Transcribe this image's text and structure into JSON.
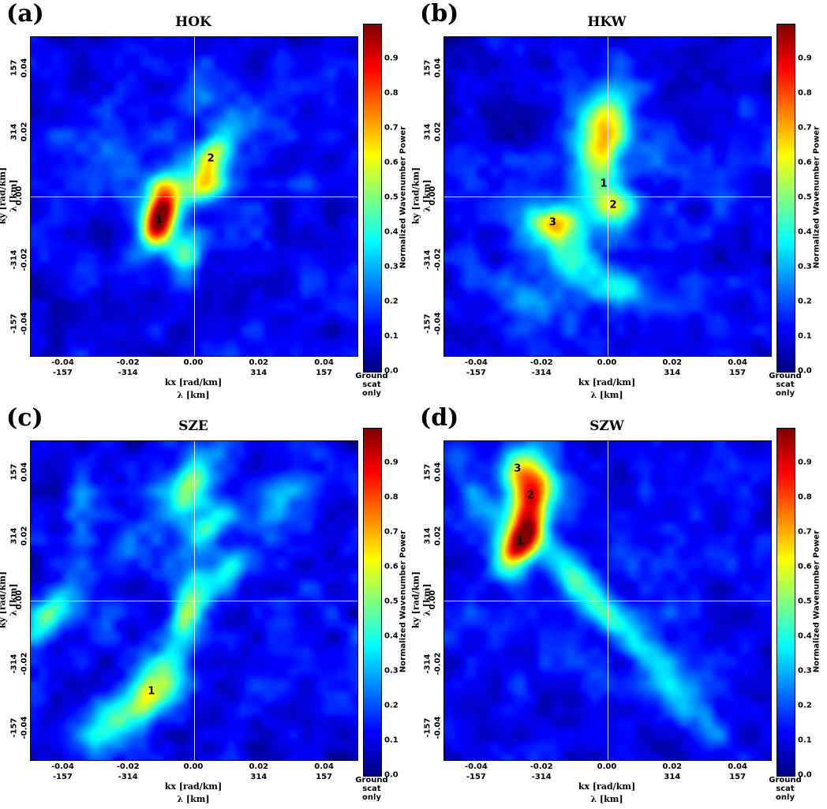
{
  "figure": {
    "background": "#ffffff",
    "axes": {
      "x": {
        "label_k": "kx [rad/km]",
        "label_lambda": "λ [km]",
        "range": [
          -0.05,
          0.05
        ],
        "ticks": [
          {
            "pos": -0.04,
            "k": "-0.04",
            "lam": "-157"
          },
          {
            "pos": -0.02,
            "k": "-0.02",
            "lam": "-314"
          },
          {
            "pos": 0.0,
            "k": "0.00",
            "lam": ""
          },
          {
            "pos": 0.02,
            "k": "0.02",
            "lam": "314"
          },
          {
            "pos": 0.04,
            "k": "0.04",
            "lam": "157"
          }
        ]
      },
      "y": {
        "label_k": "ky [rad/km]",
        "label_lambda": "λ [km]",
        "range": [
          -0.05,
          0.05
        ],
        "ticks": [
          {
            "pos": 0.04,
            "k": "0.04",
            "lam": "157"
          },
          {
            "pos": 0.02,
            "k": "0.02",
            "lam": "314"
          },
          {
            "pos": 0.0,
            "k": "0.00",
            "lam": ""
          },
          {
            "pos": -0.02,
            "k": "-0.02",
            "lam": "-314"
          },
          {
            "pos": -0.04,
            "k": "-0.04",
            "lam": "-157"
          }
        ]
      },
      "colorbar": {
        "label": "Normalized Wavenumber Power",
        "range": [
          0,
          1
        ],
        "ticks": [
          "0.0",
          "0.1",
          "0.2",
          "0.3",
          "0.4",
          "0.5",
          "0.6",
          "0.7",
          "0.8",
          "0.9"
        ],
        "footer": "Ground scat only",
        "colormap": "jet"
      }
    }
  },
  "chart_data": [
    {
      "type": "heatmap",
      "panel_label": "(a)",
      "title": "HOK",
      "peaks": [
        {
          "label": "1",
          "kx": -0.0107,
          "ky": -0.0074,
          "power": 0.97
        },
        {
          "label": "2",
          "kx": 0.0051,
          "ky": 0.0119,
          "power": 0.6
        }
      ],
      "field_blobs": [
        [
          -0.0107,
          -0.0074,
          0.92,
          0.0062,
          0.0034,
          75
        ],
        [
          -0.0095,
          0.0022,
          0.34,
          0.005,
          0.0038,
          75
        ],
        [
          0.0051,
          0.0119,
          0.46,
          0.0062,
          0.0036,
          70
        ],
        [
          0.0028,
          0.0028,
          0.3,
          0.005,
          0.0036,
          20
        ],
        [
          -0.0022,
          -0.018,
          0.27,
          0.0048,
          0.0038,
          80
        ],
        [
          0.0125,
          0.021,
          0.17,
          0.0045,
          0.0036,
          40
        ],
        [
          0.0005,
          0.033,
          0.14,
          0.005,
          0.004,
          0
        ],
        [
          -0.026,
          0.013,
          0.1,
          0.005,
          0.004,
          0
        ]
      ],
      "noise": {
        "seed": 3,
        "base": 0.13,
        "amp": 0.09,
        "grid": 13
      }
    },
    {
      "type": "heatmap",
      "panel_label": "(b)",
      "title": "HKW",
      "peaks": [
        {
          "label": "1",
          "kx": -0.0012,
          "ky": 0.004,
          "power": 0.6
        },
        {
          "label": "2",
          "kx": 0.0017,
          "ky": -0.0027,
          "power": 0.55
        },
        {
          "label": "3",
          "kx": -0.0168,
          "ky": -0.0082,
          "power": 0.6
        }
      ],
      "field_blobs": [
        [
          -0.002,
          0.013,
          0.4,
          0.0105,
          0.005,
          78
        ],
        [
          0.0017,
          -0.0027,
          0.42,
          0.0046,
          0.0044,
          0
        ],
        [
          -0.0168,
          -0.0082,
          0.48,
          0.0056,
          0.004,
          -10
        ],
        [
          -0.01,
          -0.0205,
          0.28,
          0.009,
          0.0055,
          -35
        ],
        [
          -0.0245,
          -0.032,
          0.2,
          0.0062,
          0.0048,
          -35
        ],
        [
          0.004,
          -0.03,
          0.18,
          0.007,
          0.004,
          10
        ],
        [
          -0.001,
          0.024,
          0.3,
          0.007,
          0.0048,
          75
        ],
        [
          0.015,
          0.01,
          0.12,
          0.006,
          0.005,
          0
        ],
        [
          -0.03,
          0.028,
          -0.07,
          0.01,
          0.008,
          0
        ]
      ],
      "noise": {
        "seed": 7,
        "base": 0.13,
        "amp": 0.09,
        "grid": 13
      }
    },
    {
      "type": "heatmap",
      "panel_label": "(c)",
      "title": "SZE",
      "peaks": [
        {
          "label": "1",
          "kx": -0.0131,
          "ky": -0.0285,
          "power": 0.62
        }
      ],
      "field_blobs": [
        [
          -0.001,
          0.037,
          0.44,
          0.008,
          0.0042,
          60
        ],
        [
          0.004,
          0.024,
          0.3,
          0.0066,
          0.0038,
          55
        ],
        [
          -0.002,
          -0.004,
          0.4,
          0.009,
          0.0034,
          75
        ],
        [
          -0.0131,
          -0.0285,
          0.5,
          0.009,
          0.0045,
          55
        ],
        [
          -0.044,
          -0.004,
          0.4,
          0.0068,
          0.0034,
          55
        ],
        [
          -0.028,
          -0.04,
          0.26,
          0.008,
          0.005,
          55
        ],
        [
          0.024,
          0.028,
          0.18,
          0.008,
          0.004,
          55
        ],
        [
          0.01,
          0.008,
          0.22,
          0.006,
          0.0032,
          55
        ],
        [
          -0.022,
          0.018,
          0.14,
          0.006,
          0.004,
          55
        ],
        [
          -0.035,
          0.03,
          0.12,
          0.005,
          0.004,
          55
        ],
        [
          0.035,
          0.043,
          0.1,
          0.006,
          0.004,
          55
        ]
      ],
      "noise": {
        "seed": 5,
        "base": 0.13,
        "amp": 0.1,
        "grid": 13
      }
    },
    {
      "type": "heatmap",
      "panel_label": "(d)",
      "title": "SZW",
      "peaks": [
        {
          "label": "1",
          "kx": -0.0267,
          "ky": 0.0186,
          "power": 0.88
        },
        {
          "label": "2",
          "kx": -0.0236,
          "ky": 0.0329,
          "power": 0.78
        },
        {
          "label": "3",
          "kx": -0.0276,
          "ky": 0.0413,
          "power": 0.62
        }
      ],
      "field_blobs": [
        [
          -0.0267,
          0.0186,
          0.8,
          0.007,
          0.0036,
          60
        ],
        [
          -0.0236,
          0.0329,
          0.7,
          0.0075,
          0.0042,
          70
        ],
        [
          -0.0276,
          0.0413,
          0.46,
          0.005,
          0.0042,
          60
        ],
        [
          -0.012,
          0.01,
          0.24,
          0.012,
          0.0036,
          -45
        ],
        [
          -0.004,
          -0.002,
          0.18,
          0.01,
          0.0034,
          -45
        ],
        [
          0.008,
          -0.012,
          0.15,
          0.012,
          0.004,
          -45
        ],
        [
          0.02,
          -0.028,
          0.13,
          0.01,
          0.004,
          -45
        ],
        [
          -0.038,
          0.03,
          0.18,
          0.006,
          0.003,
          -48
        ],
        [
          0.03,
          -0.04,
          0.11,
          0.008,
          0.004,
          -45
        ],
        [
          -0.044,
          0.044,
          0.12,
          0.006,
          0.0036,
          -45
        ]
      ],
      "noise": {
        "seed": 11,
        "base": 0.13,
        "amp": 0.09,
        "grid": 13
      }
    }
  ]
}
